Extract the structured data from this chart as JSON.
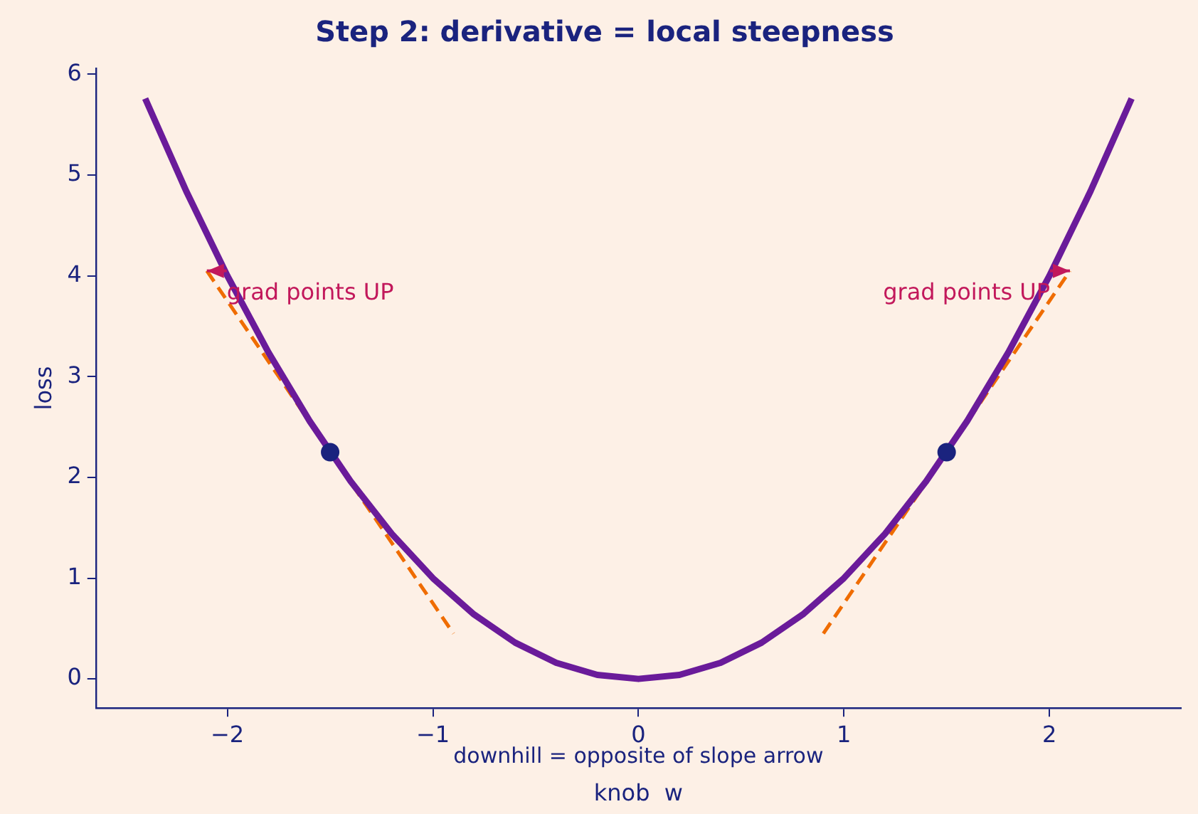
{
  "chart_data": {
    "type": "line",
    "title": "Step 2: derivative = local steepness",
    "xlabel": "knob  w",
    "ylabel": "loss",
    "xlim": [
      -2.64,
      2.64
    ],
    "ylim": [
      -0.29,
      6.06
    ],
    "xticks": [
      {
        "value": -2,
        "label": "−2"
      },
      {
        "value": -1,
        "label": "−1"
      },
      0,
      1,
      2
    ],
    "yticks": [
      0,
      1,
      2,
      3,
      4,
      5,
      6
    ],
    "grid": false,
    "legend": false,
    "series": [
      {
        "type": "line",
        "color": "#6a1b9a",
        "line_style": "solid",
        "marker": "none",
        "x": [
          -2.4,
          -2.2,
          -2.0,
          -1.8,
          -1.6,
          -1.4,
          -1.2,
          -1.0,
          -0.8,
          -0.6,
          -0.4,
          -0.2,
          0,
          0.2,
          0.4,
          0.6,
          0.8,
          1.0,
          1.2,
          1.4,
          1.6,
          1.8,
          2.0,
          2.2,
          2.4
        ],
        "values": [
          5.76,
          4.84,
          4.0,
          3.24,
          2.56,
          1.96,
          1.44,
          1.0,
          0.64,
          0.36,
          0.16,
          0.04,
          0,
          0.04,
          0.16,
          0.36,
          0.64,
          1.0,
          1.44,
          1.96,
          2.56,
          3.24,
          4.0,
          4.84,
          5.76
        ]
      },
      {
        "type": "line",
        "color": "#ef6c00",
        "line_style": "dashed",
        "marker": "none",
        "x": [
          -2.1,
          -0.9
        ],
        "values": [
          4.05,
          0.45
        ]
      },
      {
        "type": "line",
        "color": "#ef6c00",
        "line_style": "dashed",
        "marker": "none",
        "x": [
          0.9,
          2.1
        ],
        "values": [
          0.45,
          4.05
        ]
      },
      {
        "type": "scatter",
        "color": "#1a237e",
        "marker": "circle",
        "x": [
          -1.5,
          1.5
        ],
        "values": [
          2.25,
          2.25
        ]
      }
    ],
    "annotations": [
      {
        "text": "grad points UP",
        "x": -2.1,
        "y": 4.05
      },
      {
        "text": "grad points UP",
        "x": 2.1,
        "y": 4.05
      },
      "downhill = opposite of slope arrow"
    ]
  }
}
